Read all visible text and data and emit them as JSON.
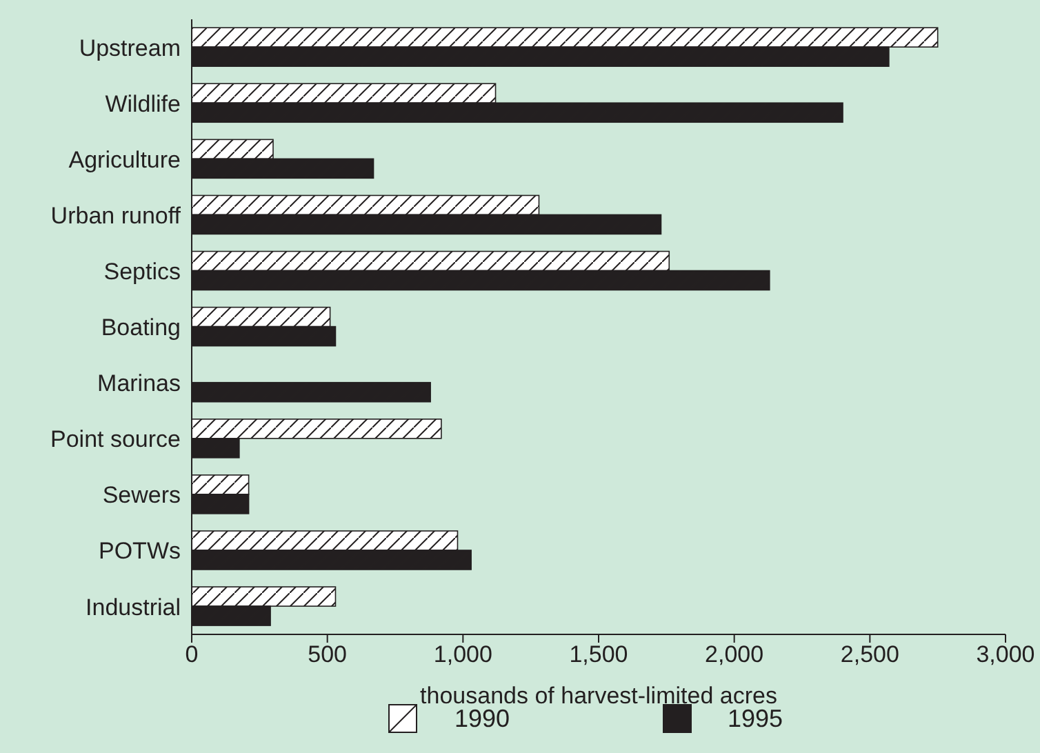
{
  "chart_data": {
    "type": "bar",
    "orientation": "horizontal",
    "categories": [
      "Upstream",
      "Wildlife",
      "Agriculture",
      "Urban runoff",
      "Septics",
      "Boating",
      "Marinas",
      "Point source",
      "Sewers",
      "POTWs",
      "Industrial"
    ],
    "series": [
      {
        "name": "1990",
        "color": "#ffffff",
        "values": [
          2750,
          1120,
          300,
          1280,
          1760,
          510,
          null,
          920,
          210,
          980,
          530
        ]
      },
      {
        "name": "1995",
        "color": "#231f20",
        "values": [
          2570,
          2400,
          670,
          1730,
          2130,
          530,
          880,
          175,
          210,
          1030,
          290
        ]
      }
    ],
    "xlim": [
      0,
      3000
    ],
    "xticks": [
      0,
      {
        "value": 500,
        "label": "500"
      },
      {
        "value": 1000,
        "label": "1,000"
      },
      {
        "value": 1500,
        "label": "1,500"
      },
      {
        "value": 2000,
        "label": "2,000"
      },
      {
        "value": 2500,
        "label": "2,500"
      },
      {
        "value": 3000,
        "label": "3,000"
      }
    ],
    "xlabel": "thousands of harvest-limited acres",
    "legend": "bottom",
    "grid": false
  }
}
